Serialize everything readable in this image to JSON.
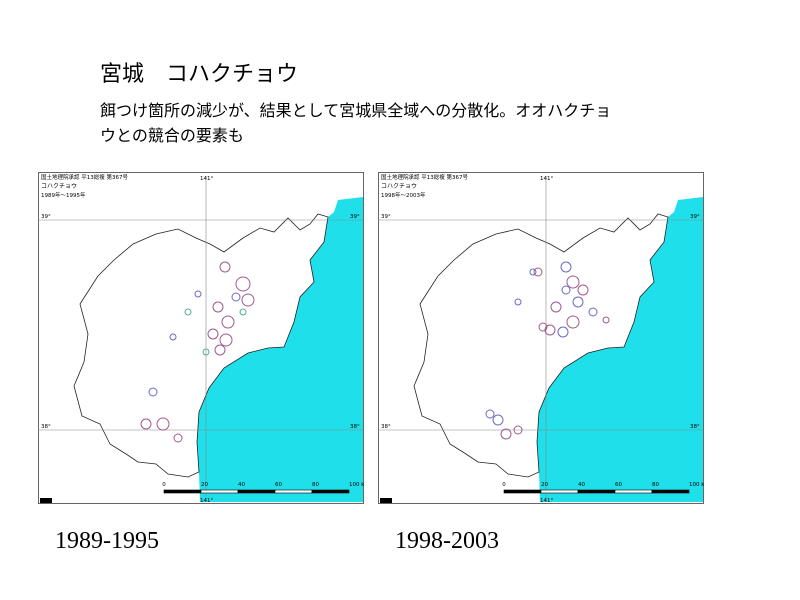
{
  "title": "宮城　コハクチョウ",
  "subtitle_lines": [
    "餌つけ箇所の減少が、結果として宮城県全域への分散化。オオハクチョ",
    "ウとの競合の要素も"
  ],
  "maps": [
    {
      "header": "国土地理院承認 平13総複 第367号",
      "species": "コハクチョウ",
      "period": "1989年～1995年",
      "caption": "1989-1995"
    },
    {
      "header": "国土地理院承認 平13総複 第367号",
      "species": "コハクチョウ",
      "period": "1998年～2003年",
      "caption": "1998-2003"
    }
  ],
  "map_labels": {
    "lon": "141°",
    "lat_north": "39°",
    "lat_south": "38°"
  },
  "scale_labels": [
    "0",
    "20",
    "40",
    "60",
    "80",
    "100 km"
  ]
}
